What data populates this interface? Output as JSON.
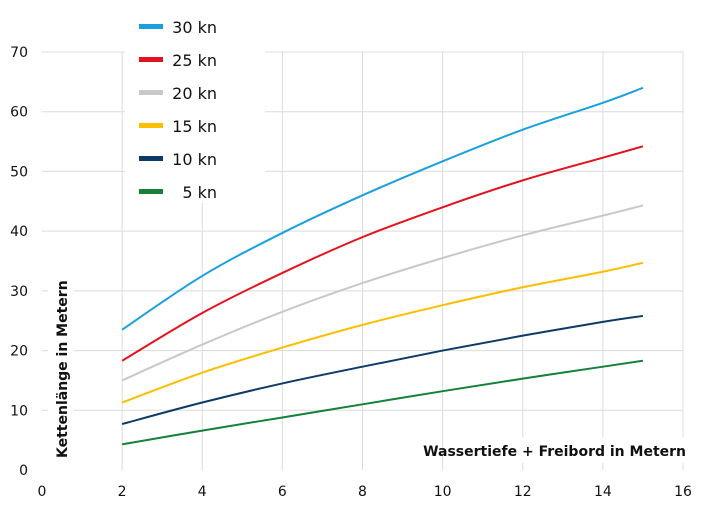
{
  "chart_data": {
    "type": "line",
    "title": "",
    "xlabel": "Wassertiefe + Freibord in Metern",
    "ylabel": "Kettenlänge in Metern",
    "xlim": [
      0,
      16
    ],
    "ylim": [
      0,
      70
    ],
    "xticks": [
      0,
      2,
      4,
      6,
      8,
      10,
      12,
      14,
      16
    ],
    "yticks": [
      0,
      10,
      20,
      30,
      40,
      50,
      60,
      70
    ],
    "grid": true,
    "legend_position": "top-left",
    "x": [
      2,
      4,
      6,
      8,
      10,
      12,
      14,
      15
    ],
    "series": [
      {
        "name": "30 kn",
        "color": "#1a9fe0",
        "values": [
          23.5,
          32.5,
          39.7,
          46.0,
          51.7,
          57.0,
          61.5,
          64.0
        ]
      },
      {
        "name": "25 kn",
        "color": "#e3121c",
        "values": [
          18.3,
          26.3,
          33.0,
          39.0,
          44.0,
          48.5,
          52.3,
          54.2
        ]
      },
      {
        "name": "20 kn",
        "color": "#c8c8c8",
        "values": [
          15.0,
          21.0,
          26.5,
          31.3,
          35.5,
          39.3,
          42.6,
          44.3
        ]
      },
      {
        "name": "15 kn",
        "color": "#fbbf00",
        "values": [
          11.3,
          16.3,
          20.5,
          24.3,
          27.6,
          30.6,
          33.2,
          34.7
        ]
      },
      {
        "name": "10 kn",
        "color": "#0d3a66",
        "values": [
          7.7,
          11.3,
          14.5,
          17.3,
          20.0,
          22.5,
          24.8,
          25.8
        ]
      },
      {
        "name": "5 kn",
        "color": "#14803a",
        "values": [
          4.3,
          6.6,
          8.8,
          11.0,
          13.2,
          15.3,
          17.3,
          18.3
        ]
      }
    ]
  }
}
